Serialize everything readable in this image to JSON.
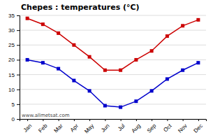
{
  "chart_data": {
    "type": "line",
    "title": "Chepes : temperatures (°C)",
    "categories": [
      "Jan",
      "Feb",
      "Mar",
      "Apr",
      "May",
      "Jun",
      "Jul",
      "Aug",
      "Sep",
      "Oct",
      "Nov",
      "Dec"
    ],
    "series": [
      {
        "color": "#cc0000",
        "marker": "square",
        "values": [
          34,
          32,
          29,
          25,
          21,
          16.5,
          16.5,
          20,
          23,
          28,
          31.5,
          33.5
        ]
      },
      {
        "color": "#0000cc",
        "marker": "square",
        "values": [
          20,
          19,
          17,
          13,
          9.5,
          4.5,
          4,
          6,
          9.5,
          13.5,
          16.5,
          19
        ]
      }
    ],
    "ylim": [
      0,
      35
    ],
    "yticks": [
      0,
      5,
      10,
      15,
      20,
      25,
      30,
      35
    ],
    "grid": true,
    "annotations": [
      "www.allmetsat.com"
    ]
  }
}
